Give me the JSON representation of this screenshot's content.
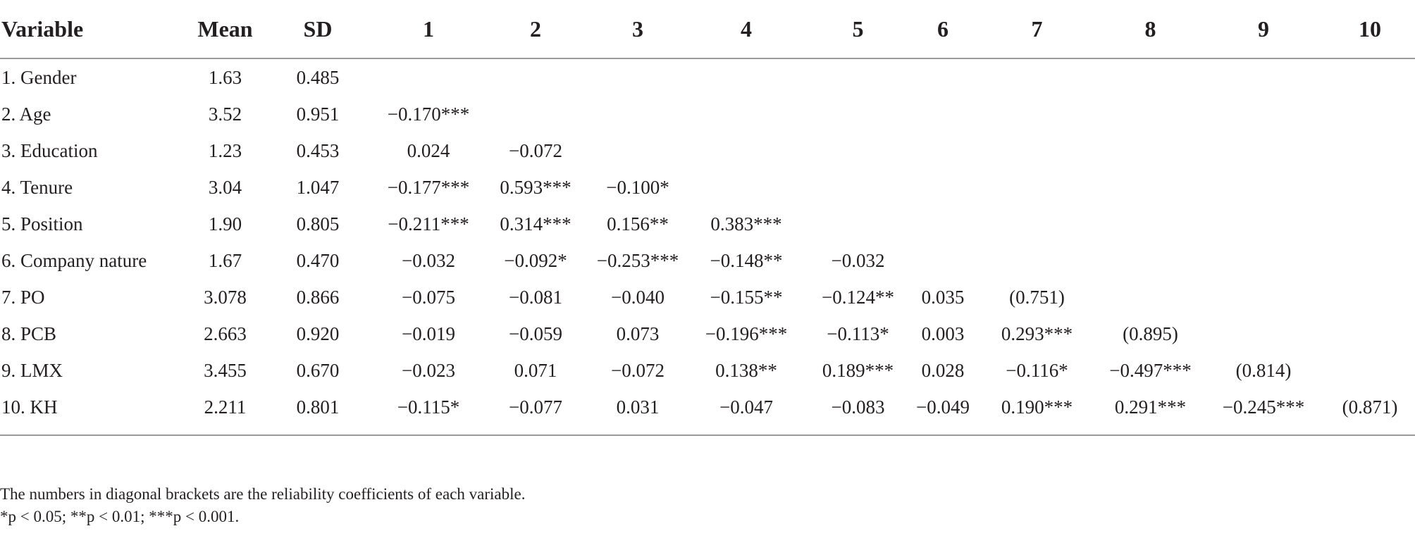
{
  "table": {
    "headers": [
      "Variable",
      "Mean",
      "SD",
      "1",
      "2",
      "3",
      "4",
      "5",
      "6",
      "7",
      "8",
      "9",
      "10"
    ],
    "rows": [
      [
        "1. Gender",
        "1.63",
        "0.485",
        "",
        "",
        "",
        "",
        "",
        "",
        "",
        "",
        "",
        ""
      ],
      [
        "2. Age",
        "3.52",
        "0.951",
        "−0.170***",
        "",
        "",
        "",
        "",
        "",
        "",
        "",
        "",
        ""
      ],
      [
        "3. Education",
        "1.23",
        "0.453",
        "0.024",
        "−0.072",
        "",
        "",
        "",
        "",
        "",
        "",
        "",
        ""
      ],
      [
        "4. Tenure",
        "3.04",
        "1.047",
        "−0.177***",
        "0.593***",
        "−0.100*",
        "",
        "",
        "",
        "",
        "",
        "",
        ""
      ],
      [
        "5. Position",
        "1.90",
        "0.805",
        "−0.211***",
        "0.314***",
        "0.156**",
        "0.383***",
        "",
        "",
        "",
        "",
        "",
        ""
      ],
      [
        "6. Company nature",
        "1.67",
        "0.470",
        "−0.032",
        "−0.092*",
        "−0.253***",
        "−0.148**",
        "−0.032",
        "",
        "",
        "",
        "",
        ""
      ],
      [
        "7. PO",
        "3.078",
        "0.866",
        "−0.075",
        "−0.081",
        "−0.040",
        "−0.155**",
        "−0.124**",
        "0.035",
        "(0.751)",
        "",
        "",
        ""
      ],
      [
        "8. PCB",
        "2.663",
        "0.920",
        "−0.019",
        "−0.059",
        "0.073",
        "−0.196***",
        "−0.113*",
        "0.003",
        "0.293***",
        "(0.895)",
        "",
        ""
      ],
      [
        "9. LMX",
        "3.455",
        "0.670",
        "−0.023",
        "0.071",
        "−0.072",
        "0.138**",
        "0.189***",
        "0.028",
        "−0.116*",
        "−0.497***",
        "(0.814)",
        ""
      ],
      [
        "10. KH",
        "2.211",
        "0.801",
        "−0.115*",
        "−0.077",
        "0.031",
        "−0.047",
        "−0.083",
        "−0.049",
        "0.190***",
        "0.291***",
        "−0.245***",
        "(0.871)"
      ]
    ]
  },
  "notes": {
    "line1": "The numbers in diagonal brackets are the reliability coefficients of each variable.",
    "line2": "*p < 0.05; **p < 0.01; ***p < 0.001."
  }
}
